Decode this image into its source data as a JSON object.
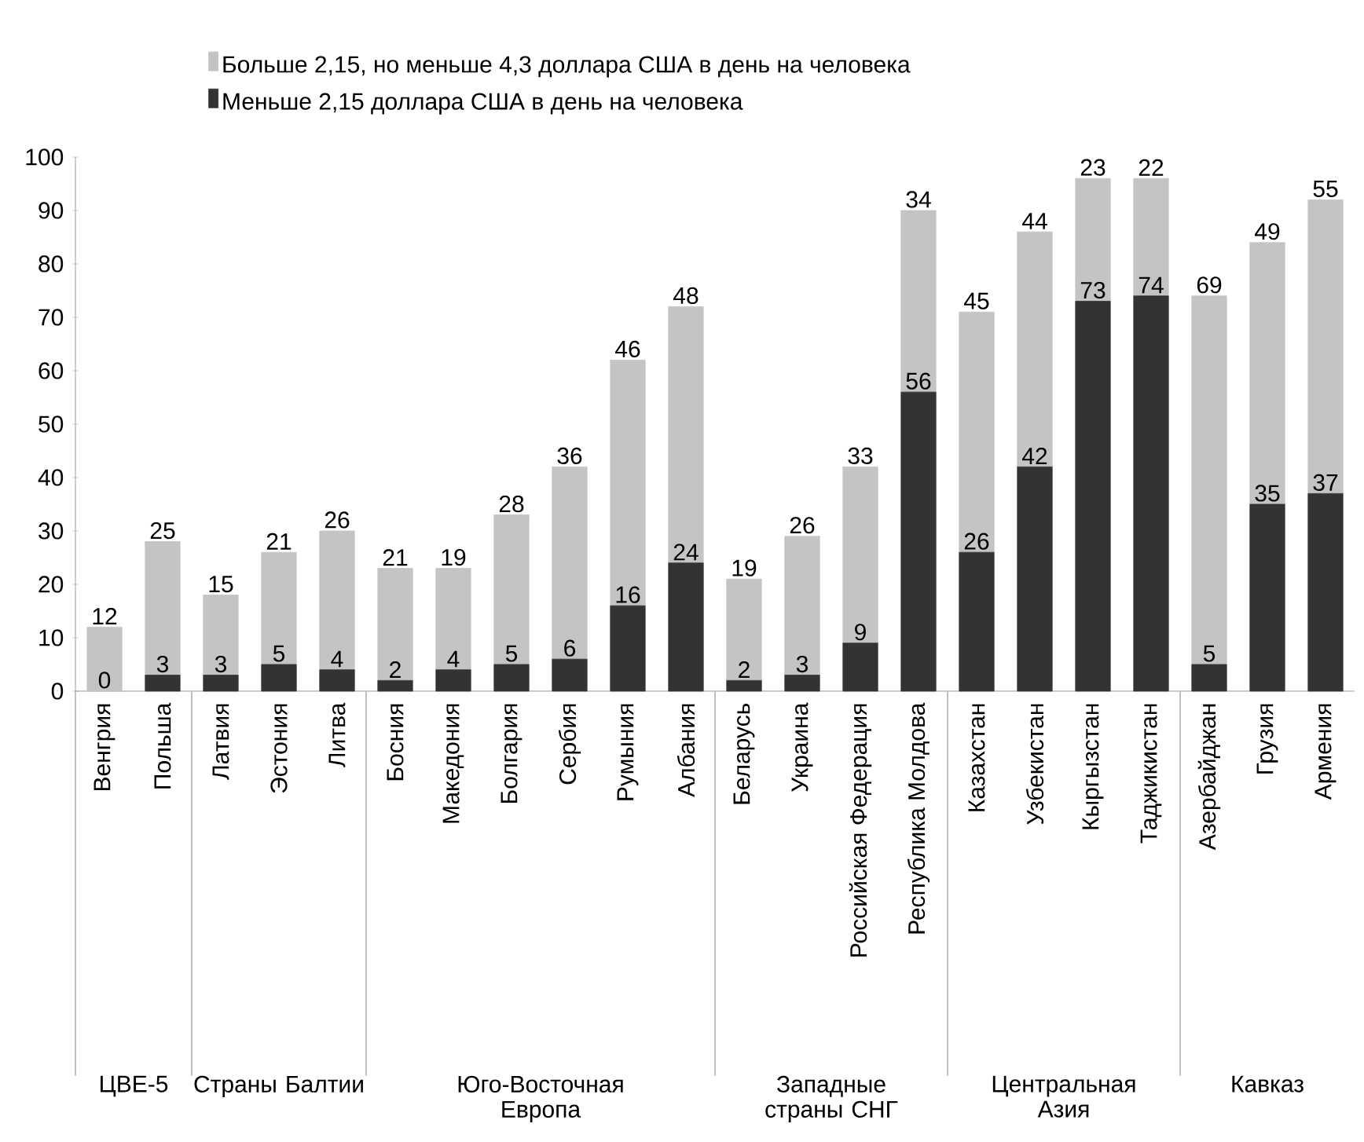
{
  "chart_data": {
    "type": "bar",
    "stacked": true,
    "data_labels": true,
    "legend": "top",
    "grid": false,
    "categories": [
      "Венгрия",
      "Польша",
      "Латвия",
      "Эстония",
      "Литва",
      "Босния",
      "Македония",
      "Болгария",
      "Сербия",
      "Румыния",
      "Албания",
      "Беларусь",
      "Украина",
      "Российская Федерация",
      "Республика Молдова",
      "Казахстан",
      "Узбекистан",
      "Кыргызстан",
      "Таджикистан",
      "Азербайджан",
      "Грузия",
      "Армения"
    ],
    "series": [
      {
        "name": "Меньше 2,15 доллара США в день на человека",
        "color": "#333333",
        "values": [
          0,
          3,
          3,
          5,
          4,
          2,
          4,
          5,
          6,
          16,
          24,
          2,
          3,
          9,
          56,
          26,
          42,
          73,
          74,
          5,
          35,
          37
        ]
      },
      {
        "name": "Больше 2,15, но меньше 4,3 доллара США в день на человека",
        "color": "#c4c4c4",
        "values": [
          12,
          25,
          15,
          21,
          26,
          21,
          19,
          28,
          36,
          46,
          48,
          19,
          26,
          33,
          34,
          45,
          44,
          23,
          22,
          69,
          49,
          55
        ]
      }
    ],
    "ylim": [
      0,
      100
    ],
    "yticks": [
      0,
      10,
      20,
      30,
      40,
      50,
      60,
      70,
      80,
      90,
      100
    ],
    "annotations": [
      "ЦВЕ-5",
      "Страны Балтии",
      "Юго-Восточная Европа",
      "Западные страны СНГ",
      "Центральная Азия",
      "Кавказ"
    ]
  }
}
